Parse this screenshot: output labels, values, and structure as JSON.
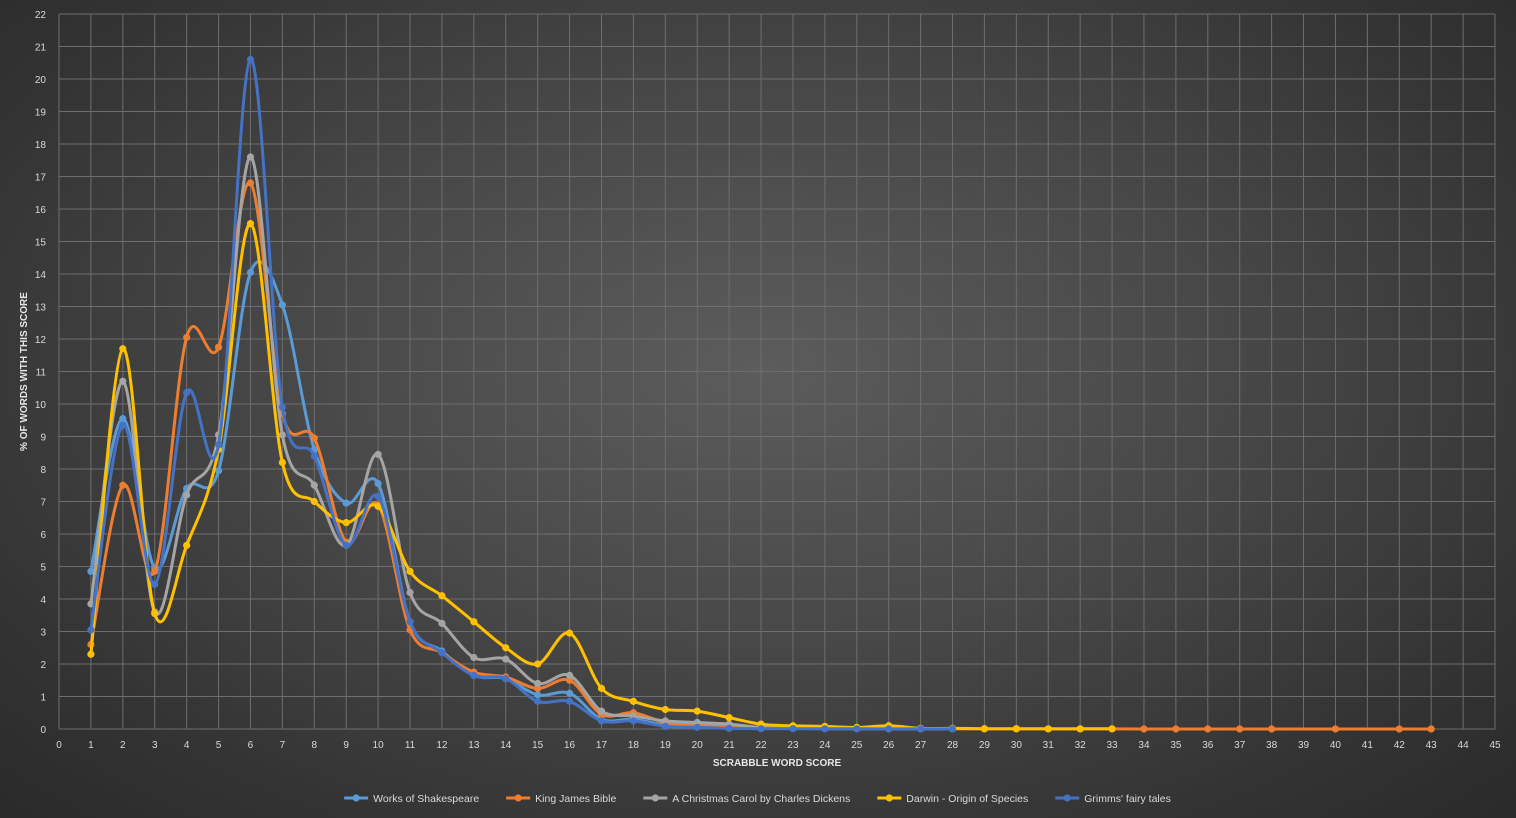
{
  "chart_data": {
    "type": "line",
    "title": "",
    "xlabel": "SCRABBLE WORD SCORE",
    "ylabel": "% OF WORDS WITH THIS SCORE",
    "xlim": [
      0,
      45
    ],
    "ylim": [
      0,
      22
    ],
    "x_ticks": [
      0,
      1,
      2,
      3,
      4,
      5,
      6,
      7,
      8,
      9,
      10,
      11,
      12,
      13,
      14,
      15,
      16,
      17,
      18,
      19,
      20,
      21,
      22,
      23,
      24,
      25,
      26,
      27,
      28,
      29,
      30,
      31,
      32,
      33,
      34,
      35,
      36,
      37,
      38,
      39,
      40,
      41,
      42,
      43,
      44,
      45
    ],
    "y_ticks": [
      0,
      1,
      2,
      3,
      4,
      5,
      6,
      7,
      8,
      9,
      10,
      11,
      12,
      13,
      14,
      15,
      16,
      17,
      18,
      19,
      20,
      21,
      22
    ],
    "grid": true,
    "legend_position": "bottom",
    "series": [
      {
        "name": "Works of Shakespeare",
        "color": "#5b9bd5",
        "x": [
          1,
          2,
          3,
          4,
          5,
          6,
          7,
          8,
          9,
          10,
          11,
          12,
          13,
          14,
          15,
          16,
          17,
          18,
          19,
          20,
          21,
          22,
          23,
          24,
          25,
          26,
          27,
          28
        ],
        "y": [
          4.85,
          9.55,
          4.95,
          7.4,
          7.95,
          14.05,
          13.05,
          8.6,
          6.95,
          7.55,
          3.3,
          2.4,
          1.65,
          1.55,
          1.05,
          1.1,
          0.3,
          0.3,
          0.12,
          0.1,
          0.05,
          0.03,
          0.02,
          0.01,
          0.01,
          0.01,
          0.005,
          0.005
        ]
      },
      {
        "name": "King James Bible",
        "color": "#ed7d31",
        "x": [
          1,
          2,
          3,
          4,
          5,
          6,
          7,
          8,
          9,
          10,
          11,
          12,
          13,
          14,
          15,
          16,
          17,
          18,
          19,
          20,
          21,
          22,
          23,
          24,
          25,
          26,
          27,
          28,
          29,
          30,
          31,
          32,
          33,
          34,
          35,
          36,
          37,
          38,
          40,
          42,
          43
        ],
        "y": [
          2.6,
          7.5,
          4.85,
          12.05,
          11.75,
          16.8,
          9.7,
          8.95,
          5.75,
          6.9,
          3.05,
          2.35,
          1.75,
          1.6,
          1.25,
          1.5,
          0.45,
          0.5,
          0.2,
          0.15,
          0.1,
          0.05,
          0.03,
          0.02,
          0.01,
          0.01,
          0.005,
          0.005,
          0.003,
          0.003,
          0.002,
          0.002,
          0.002,
          0.001,
          0.001,
          0.001,
          0.001,
          0.001,
          0.001,
          0.001,
          0.001
        ]
      },
      {
        "name": "A Christmas Carol by Charles Dickens",
        "color": "#a5a5a5",
        "x": [
          1,
          2,
          3,
          4,
          5,
          6,
          7,
          8,
          9,
          10,
          11,
          12,
          13,
          14,
          15,
          16,
          17,
          18,
          19,
          20,
          21,
          22,
          23,
          24,
          25,
          26,
          27,
          28
        ],
        "y": [
          3.85,
          10.7,
          3.6,
          7.2,
          9.05,
          17.6,
          9.05,
          7.5,
          5.65,
          8.45,
          4.2,
          3.25,
          2.2,
          2.15,
          1.4,
          1.65,
          0.55,
          0.4,
          0.25,
          0.2,
          0.15,
          0.05,
          0.03,
          0.02,
          0.02,
          0.01,
          0.005,
          0.005
        ]
      },
      {
        "name": "Darwin - Origin of Species",
        "color": "#ffc000",
        "x": [
          1,
          2,
          3,
          4,
          5,
          6,
          7,
          8,
          9,
          10,
          11,
          12,
          13,
          14,
          15,
          16,
          17,
          18,
          19,
          20,
          21,
          22,
          23,
          24,
          25,
          26,
          27,
          28,
          29,
          30,
          31,
          32,
          33
        ],
        "y": [
          2.3,
          11.7,
          3.55,
          5.65,
          8.6,
          15.55,
          8.2,
          7.0,
          6.35,
          6.85,
          4.85,
          4.1,
          3.3,
          2.5,
          2.0,
          2.95,
          1.25,
          0.85,
          0.6,
          0.55,
          0.35,
          0.15,
          0.1,
          0.08,
          0.05,
          0.1,
          0.02,
          0.02,
          0.01,
          0.01,
          0.005,
          0.005,
          0.005
        ]
      },
      {
        "name": "Grimms' fairy tales",
        "color": "#4472c4",
        "x": [
          1,
          2,
          3,
          4,
          5,
          6,
          7,
          8,
          9,
          10,
          11,
          12,
          13,
          14,
          15,
          16,
          17,
          18,
          19,
          20,
          21,
          22,
          23,
          24,
          25,
          26,
          27,
          28
        ],
        "y": [
          3.05,
          9.35,
          4.45,
          10.35,
          8.75,
          20.6,
          9.9,
          8.4,
          5.65,
          7.15,
          3.3,
          2.35,
          1.65,
          1.55,
          0.85,
          0.85,
          0.25,
          0.25,
          0.08,
          0.05,
          0.02,
          0.01,
          0.01,
          0.005,
          0.005,
          0.003,
          0.003,
          0.003
        ]
      }
    ]
  }
}
